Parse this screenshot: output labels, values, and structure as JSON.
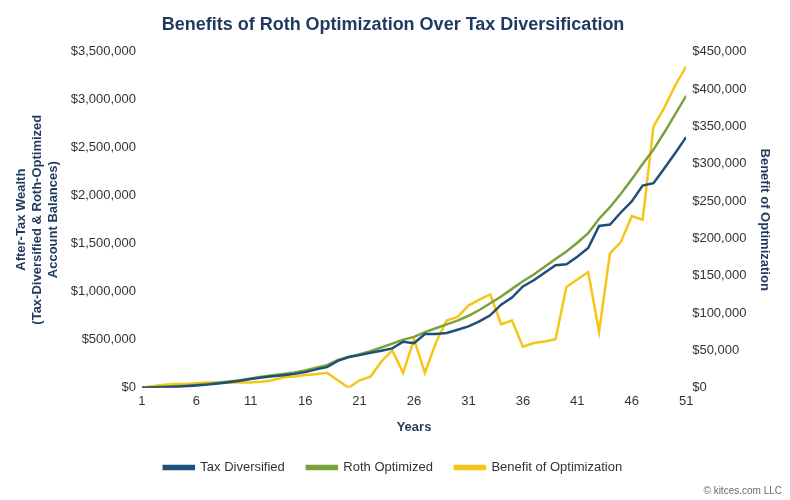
{
  "chart_data": {
    "type": "line",
    "title": "Benefits of Roth Optimization Over Tax Diversification",
    "xlabel": "Years",
    "ylabel": [
      "After-Tax Wealth",
      "(Tax-Diversified & Roth-Optimized",
      "Account Balances)"
    ],
    "y2label": "Benefit of Optimization",
    "credit": "© kitces.com LLC",
    "x": [
      1,
      2,
      3,
      4,
      5,
      6,
      7,
      8,
      9,
      10,
      11,
      12,
      13,
      14,
      15,
      16,
      17,
      18,
      19,
      20,
      21,
      22,
      23,
      24,
      25,
      26,
      27,
      28,
      29,
      30,
      31,
      32,
      33,
      34,
      35,
      36,
      37,
      38,
      39,
      40,
      41,
      42,
      43,
      44,
      45,
      46,
      47,
      48,
      49,
      50,
      51
    ],
    "xlim": [
      1,
      51
    ],
    "xticks": [
      1,
      6,
      11,
      16,
      21,
      26,
      31,
      36,
      41,
      46,
      51
    ],
    "ylim": [
      0,
      3500000
    ],
    "yticks": [
      {
        "value": 0,
        "label": "$0"
      },
      {
        "value": 500000,
        "label": "$500,000"
      },
      {
        "value": 1000000,
        "label": "$1,000,000"
      },
      {
        "value": 1500000,
        "label": "$1,500,000"
      },
      {
        "value": 2000000,
        "label": "$2,000,000"
      },
      {
        "value": 2500000,
        "label": "$2,500,000"
      },
      {
        "value": 3000000,
        "label": "$3,000,000"
      },
      {
        "value": 3500000,
        "label": "$3,500,000"
      }
    ],
    "y2lim": [
      0,
      450000
    ],
    "y2ticks": [
      {
        "value": 0,
        "label": "$0"
      },
      {
        "value": 50000,
        "label": "$50,000"
      },
      {
        "value": 100000,
        "label": "$100,000"
      },
      {
        "value": 150000,
        "label": "$150,000"
      },
      {
        "value": 200000,
        "label": "$200,000"
      },
      {
        "value": 250000,
        "label": "$250,000"
      },
      {
        "value": 300000,
        "label": "$300,000"
      },
      {
        "value": 350000,
        "label": "$350,000"
      },
      {
        "value": 400000,
        "label": "$400,000"
      },
      {
        "value": 450000,
        "label": "$450,000"
      }
    ],
    "grid": false,
    "legend": "bottom",
    "series": [
      {
        "name": "Tax Diversified",
        "color": "#1f4e79",
        "values": [
          0,
          3000,
          6000,
          10000,
          17000,
          24000,
          33000,
          45000,
          58000,
          73000,
          91000,
          107000,
          120000,
          131000,
          145000,
          163000,
          192000,
          215000,
          280000,
          320000,
          340000,
          365000,
          385000,
          410000,
          480000,
          465000,
          560000,
          560000,
          570000,
          605000,
          640000,
          692000,
          755000,
          865000,
          940000,
          1055000,
          1120000,
          1198000,
          1275000,
          1285000,
          1365000,
          1455000,
          1685000,
          1700000,
          1825000,
          1940000,
          2105000,
          2130000,
          2285000,
          2445000,
          2610000
        ]
      },
      {
        "name": "Roth Optimized",
        "color": "#7aa23a",
        "values": [
          0,
          5000,
          10000,
          15000,
          22000,
          30000,
          40000,
          52000,
          65000,
          80000,
          98000,
          115000,
          130000,
          145000,
          160000,
          180000,
          210000,
          235000,
          290000,
          320000,
          350000,
          380000,
          420000,
          460000,
          500000,
          530000,
          580000,
          620000,
          660000,
          700000,
          750000,
          810000,
          880000,
          950000,
          1030000,
          1110000,
          1180000,
          1260000,
          1340000,
          1420000,
          1510000,
          1610000,
          1760000,
          1880000,
          2020000,
          2170000,
          2330000,
          2480000,
          2660000,
          2850000,
          3040000
        ]
      },
      {
        "name": "Benefit of Optimization",
        "color": "#f5c518",
        "axis": "y2",
        "values": [
          0,
          2000,
          4000,
          5000,
          5000,
          6000,
          7000,
          7000,
          7000,
          7000,
          7000,
          8000,
          10000,
          14000,
          15000,
          17000,
          18000,
          20000,
          10000,
          0,
          10000,
          15000,
          35000,
          50000,
          20000,
          65000,
          20000,
          60000,
          90000,
          95000,
          110000,
          118000,
          125000,
          85000,
          90000,
          55000,
          60000,
          62000,
          65000,
          135000,
          145000,
          155000,
          75000,
          180000,
          195000,
          230000,
          225000,
          350000,
          375000,
          405000,
          430000
        ]
      }
    ]
  }
}
